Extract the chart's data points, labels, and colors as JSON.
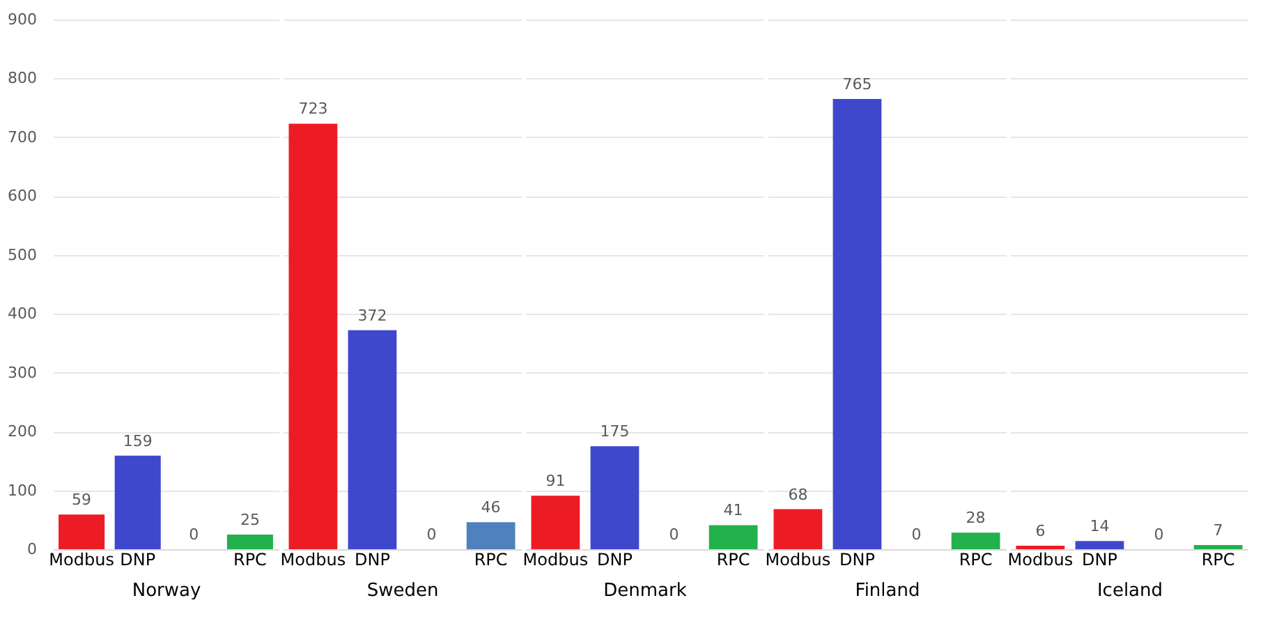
{
  "chart_data": [
    {
      "type": "bar",
      "xlabel": "Norway",
      "categories": [
        "Modbus",
        "DNP",
        null,
        "RPC"
      ],
      "values": [
        59,
        159,
        0,
        25
      ],
      "colors": [
        "#ed1c24",
        "#3f48cc",
        "#22b14c",
        "#22b14c"
      ],
      "ylim": [
        0,
        900
      ],
      "yticks": [
        0,
        100,
        200,
        300,
        400,
        500,
        600,
        700,
        800,
        900
      ],
      "grid": "y",
      "data_labels": true
    },
    {
      "type": "bar",
      "xlabel": "Sweden",
      "categories": [
        "Modbus",
        "DNP",
        null,
        "RPC"
      ],
      "values": [
        723,
        372,
        0,
        46
      ],
      "colors": [
        "#ed1c24",
        "#3f48cc",
        "#4f81bd",
        "#4f81bd"
      ],
      "ylim": [
        0,
        900
      ],
      "yticks": [
        0,
        100,
        200,
        300,
        400,
        500,
        600,
        700,
        800,
        900
      ],
      "grid": "y",
      "data_labels": true,
      "tick_labels": "x"
    },
    {
      "type": "bar",
      "xlabel": "Denmark",
      "categories": [
        "Modbus",
        "DNP",
        null,
        "RPC"
      ],
      "values": [
        91,
        175,
        0,
        41
      ],
      "colors": [
        "#ed1c24",
        "#3f48cc",
        "#22b14c",
        "#22b14c"
      ],
      "ylim": [
        0,
        900
      ],
      "yticks": [
        0,
        100,
        200,
        300,
        400,
        500,
        600,
        700,
        800,
        900
      ],
      "grid": "y",
      "data_labels": true,
      "tick_labels": "x"
    },
    {
      "type": "bar",
      "xlabel": "Finland",
      "categories": [
        "Modbus",
        "DNP",
        null,
        "RPC"
      ],
      "values": [
        68,
        765,
        0,
        28
      ],
      "colors": [
        "#ed1c24",
        "#3f48cc",
        "#22b14c",
        "#22b14c"
      ],
      "ylim": [
        0,
        900
      ],
      "yticks": [
        0,
        100,
        200,
        300,
        400,
        500,
        600,
        700,
        800,
        900
      ],
      "grid": "y",
      "data_labels": true,
      "tick_labels": "x"
    },
    {
      "type": "bar",
      "xlabel": "Iceland",
      "categories": [
        "Modbus",
        "DNP",
        null,
        "RPC"
      ],
      "values": [
        6,
        14,
        0,
        7
      ],
      "colors": [
        "#ed1c24",
        "#3f48cc",
        "#22b14c",
        "#22b14c"
      ],
      "ylim": [
        0,
        900
      ],
      "yticks": [
        0,
        100,
        200,
        300,
        400,
        500,
        600,
        700,
        800,
        900
      ],
      "grid": "y",
      "data_labels": true,
      "tick_labels": "x"
    }
  ]
}
